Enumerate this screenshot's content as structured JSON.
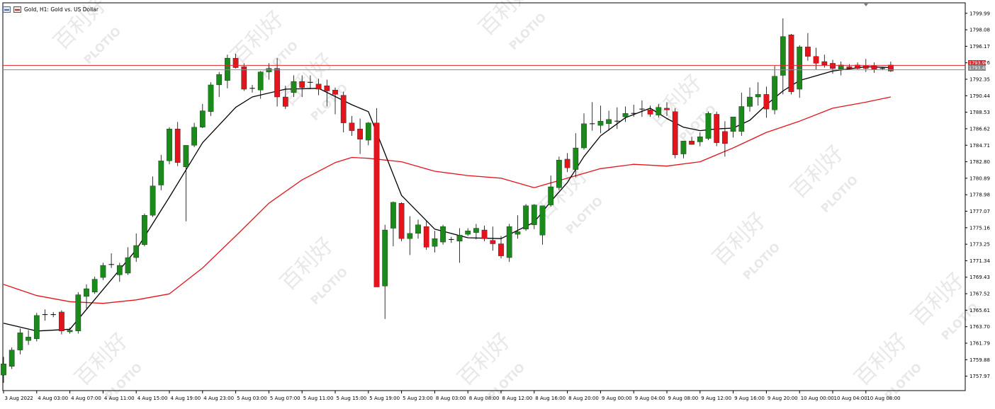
{
  "window": {
    "title": "Gold, H1:  Gold vs. US Dollar"
  },
  "price_labels": {
    "bid": "1793.96",
    "ask": "1793.45"
  },
  "colors": {
    "bullish": "#1a8a1a",
    "bearish": "#e3141b",
    "ma_fast": "#000000",
    "ma_slow": "#e3141b",
    "bid_line": "#e3262b",
    "ask_line": "#8c8c8c",
    "grid_axis": "#000000"
  },
  "watermark": {
    "cn": "百利好",
    "en": "PLOTIO"
  },
  "chart_data": {
    "type": "candlestick",
    "symbol": "Gold",
    "timeframe": "H1",
    "ylim": [
      1756.3,
      1801.2
    ],
    "y_ticks": [
      "1799.99",
      "1798.08",
      "1796.17",
      "1794.26",
      "1792.35",
      "1790.44",
      "1788.53",
      "1786.62",
      "1784.71",
      "1782.80",
      "1780.89",
      "1778.98",
      "1777.07",
      "1775.16",
      "1773.25",
      "1771.34",
      "1769.43",
      "1767.52",
      "1765.61",
      "1763.70",
      "1761.79",
      "1759.88",
      "1757.97"
    ],
    "x_ticks": [
      "3 Aug 2022",
      "4 Aug 03:00",
      "4 Aug 07:00",
      "4 Aug 11:00",
      "4 Aug 15:00",
      "4 Aug 19:00",
      "4 Aug 23:00",
      "5 Aug 03:00",
      "5 Aug 07:00",
      "5 Aug 11:00",
      "5 Aug 15:00",
      "5 Aug 19:00",
      "5 Aug 23:00",
      "8 Aug 03:00",
      "8 Aug 08:00",
      "8 Aug 12:00",
      "8 Aug 16:00",
      "8 Aug 20:00",
      "9 Aug 00:00",
      "9 Aug 04:00",
      "9 Aug 08:00",
      "9 Aug 12:00",
      "9 Aug 16:00",
      "9 Aug 20:00",
      "10 Aug 00:00",
      "10 Aug 04:00",
      "10 Aug 08:00"
    ],
    "x_tick_index": [
      0,
      4,
      8,
      12,
      16,
      20,
      24,
      28,
      32,
      36,
      40,
      44,
      48,
      52,
      56,
      60,
      64,
      68,
      72,
      76,
      80,
      84,
      88,
      92,
      96,
      100,
      104
    ],
    "bid": 1793.96,
    "ask": 1793.45,
    "candles": [
      [
        1758.1,
        1760.2,
        1757.2,
        1759.4
      ],
      [
        1759.1,
        1761.3,
        1758.8,
        1761.0
      ],
      [
        1761.0,
        1763.5,
        1760.5,
        1763.0
      ],
      [
        1762.1,
        1763.3,
        1761.6,
        1762.5
      ],
      [
        1762.3,
        1765.3,
        1762.0,
        1765.0
      ],
      [
        1765.0,
        1765.7,
        1764.4,
        1765.1
      ],
      [
        1765.1,
        1765.4,
        1764.8,
        1765.1
      ],
      [
        1765.4,
        1765.6,
        1762.8,
        1763.2
      ],
      [
        1763.1,
        1763.6,
        1762.9,
        1763.3
      ],
      [
        1763.2,
        1767.7,
        1762.9,
        1767.4
      ],
      [
        1767.2,
        1768.6,
        1765.8,
        1768.1
      ],
      [
        1767.7,
        1769.5,
        1767.5,
        1769.2
      ],
      [
        1769.4,
        1771.1,
        1769.1,
        1770.8
      ],
      [
        1770.8,
        1772.2,
        1770.5,
        1770.9
      ],
      [
        1769.7,
        1771.1,
        1768.9,
        1770.8
      ],
      [
        1769.9,
        1772.9,
        1769.7,
        1771.7
      ],
      [
        1771.7,
        1774.5,
        1771.2,
        1773.1
      ],
      [
        1773.2,
        1776.8,
        1773.0,
        1776.6
      ],
      [
        1776.6,
        1781.1,
        1776.4,
        1780.0
      ],
      [
        1780.1,
        1783.6,
        1779.5,
        1782.9
      ],
      [
        1782.9,
        1786.8,
        1782.5,
        1786.6
      ],
      [
        1786.6,
        1787.4,
        1782.3,
        1782.7
      ],
      [
        1782.2,
        1784.7,
        1775.9,
        1784.7
      ],
      [
        1784.7,
        1787.3,
        1784.5,
        1786.8
      ],
      [
        1786.8,
        1789.5,
        1786.7,
        1788.7
      ],
      [
        1788.6,
        1792.0,
        1788.1,
        1791.7
      ],
      [
        1791.7,
        1793.2,
        1790.3,
        1792.9
      ],
      [
        1792.2,
        1795.2,
        1791.3,
        1794.8
      ],
      [
        1794.8,
        1795.3,
        1793.6,
        1793.7
      ],
      [
        1793.8,
        1794.2,
        1791.0,
        1791.2
      ],
      [
        1791.3,
        1791.7,
        1790.8,
        1791.3
      ],
      [
        1791.1,
        1793.3,
        1790.1,
        1793.2
      ],
      [
        1793.2,
        1794.2,
        1792.3,
        1793.6
      ],
      [
        1793.6,
        1794.8,
        1789.2,
        1790.3
      ],
      [
        1790.3,
        1791.6,
        1788.9,
        1789.2
      ],
      [
        1790.8,
        1792.8,
        1790.3,
        1792.1
      ],
      [
        1792.1,
        1792.8,
        1790.3,
        1791.4
      ],
      [
        1791.9,
        1792.8,
        1791.2,
        1792.0
      ],
      [
        1791.8,
        1792.4,
        1790.5,
        1791.2
      ],
      [
        1791.6,
        1792.3,
        1789.2,
        1791.0
      ],
      [
        1791.1,
        1791.4,
        1788.3,
        1790.6
      ],
      [
        1790.5,
        1790.9,
        1786.2,
        1787.3
      ],
      [
        1787.3,
        1788.1,
        1785.8,
        1786.4
      ],
      [
        1786.6,
        1787.8,
        1783.7,
        1785.4
      ],
      [
        1785.3,
        1787.4,
        1784.7,
        1787.3
      ],
      [
        1787.3,
        1789.0,
        1768.4,
        1768.3
      ],
      [
        1768.4,
        1775.5,
        1764.6,
        1774.9
      ],
      [
        1775.1,
        1778.2,
        1773.0,
        1778.1
      ],
      [
        1778.0,
        1778.1,
        1773.6,
        1773.9
      ],
      [
        1773.9,
        1776.5,
        1772.0,
        1774.5
      ],
      [
        1774.5,
        1776.1,
        1773.9,
        1775.5
      ],
      [
        1775.3,
        1776.0,
        1772.6,
        1772.9
      ],
      [
        1773.0,
        1774.8,
        1772.3,
        1773.9
      ],
      [
        1773.5,
        1775.5,
        1773.2,
        1775.3
      ],
      [
        1773.7,
        1774.1,
        1773.4,
        1773.8
      ],
      [
        1773.6,
        1775.1,
        1771.1,
        1774.3
      ],
      [
        1774.4,
        1775.1,
        1774.2,
        1774.8
      ],
      [
        1774.6,
        1775.6,
        1773.8,
        1775.1
      ],
      [
        1774.9,
        1775.4,
        1773.6,
        1773.9
      ],
      [
        1773.7,
        1775.3,
        1772.5,
        1773.3
      ],
      [
        1773.3,
        1774.2,
        1771.6,
        1771.9
      ],
      [
        1771.7,
        1775.6,
        1771.2,
        1775.3
      ],
      [
        1774.4,
        1776.6,
        1773.9,
        1774.7
      ],
      [
        1775.0,
        1777.9,
        1774.8,
        1777.7
      ],
      [
        1775.5,
        1777.9,
        1775.0,
        1777.8
      ],
      [
        1774.3,
        1777.5,
        1773.2,
        1777.7
      ],
      [
        1777.8,
        1781.2,
        1777.6,
        1779.9
      ],
      [
        1779.8,
        1783.4,
        1779.5,
        1783.0
      ],
      [
        1783.1,
        1783.8,
        1781.6,
        1782.1
      ],
      [
        1781.9,
        1786.1,
        1781.0,
        1784.4
      ],
      [
        1784.4,
        1788.4,
        1784.2,
        1787.2
      ],
      [
        1787.2,
        1789.7,
        1786.4,
        1787.1
      ],
      [
        1787.0,
        1789.3,
        1786.1,
        1787.5
      ],
      [
        1787.2,
        1788.7,
        1786.4,
        1787.7
      ],
      [
        1787.4,
        1789.1,
        1786.6,
        1787.5
      ],
      [
        1788.0,
        1789.2,
        1787.4,
        1788.4
      ],
      [
        1788.4,
        1789.4,
        1788.0,
        1788.3
      ],
      [
        1788.9,
        1789.9,
        1788.0,
        1788.9
      ],
      [
        1788.8,
        1789.3,
        1788.0,
        1788.3
      ],
      [
        1788.2,
        1789.5,
        1787.9,
        1789.1
      ],
      [
        1789.0,
        1789.7,
        1788.1,
        1788.8
      ],
      [
        1788.6,
        1789.0,
        1783.2,
        1783.6
      ],
      [
        1783.7,
        1785.2,
        1783.2,
        1785.2
      ],
      [
        1785.2,
        1785.7,
        1784.8,
        1784.8
      ],
      [
        1785.1,
        1786.2,
        1784.6,
        1785.7
      ],
      [
        1785.5,
        1788.6,
        1785.3,
        1788.4
      ],
      [
        1788.3,
        1788.6,
        1784.6,
        1785.0
      ],
      [
        1786.3,
        1787.5,
        1783.4,
        1784.9
      ],
      [
        1786.3,
        1787.6,
        1785.6,
        1788.0
      ],
      [
        1786.3,
        1790.8,
        1785.8,
        1789.2
      ],
      [
        1789.2,
        1791.4,
        1788.6,
        1790.3
      ],
      [
        1790.3,
        1792.0,
        1789.3,
        1790.6
      ],
      [
        1790.6,
        1791.5,
        1787.9,
        1788.9
      ],
      [
        1788.8,
        1793.9,
        1788.3,
        1792.7
      ],
      [
        1792.8,
        1799.4,
        1790.6,
        1797.3
      ],
      [
        1797.5,
        1797.6,
        1790.6,
        1790.9
      ],
      [
        1791.2,
        1796.3,
        1790.2,
        1796.1
      ],
      [
        1796.1,
        1797.7,
        1794.5,
        1795.0
      ],
      [
        1795.0,
        1796.0,
        1793.5,
        1794.2
      ],
      [
        1794.4,
        1795.2,
        1793.7,
        1794.0
      ],
      [
        1794.2,
        1794.6,
        1793.0,
        1793.6
      ],
      [
        1793.5,
        1794.4,
        1792.8,
        1794.0
      ],
      [
        1793.8,
        1794.1,
        1793.5,
        1793.6
      ],
      [
        1794.0,
        1794.3,
        1793.5,
        1793.6
      ],
      [
        1793.9,
        1794.7,
        1793.2,
        1793.6
      ],
      [
        1793.9,
        1794.3,
        1793.1,
        1793.5
      ],
      [
        1793.5,
        1793.8,
        1793.4,
        1793.6
      ],
      [
        1794.0,
        1794.4,
        1793.2,
        1793.3
      ]
    ],
    "ma_fast": {
      "x": [
        0,
        4,
        8,
        12,
        16,
        20,
        24,
        28,
        30,
        34,
        38,
        42,
        44,
        48,
        52,
        56,
        60,
        64,
        66,
        68,
        70,
        72,
        75,
        78,
        80,
        82,
        84,
        86,
        88,
        90,
        92,
        94,
        96,
        100,
        104,
        107
      ],
      "y": [
        1764.1,
        1763.2,
        1763.4,
        1768.0,
        1772.6,
        1778.7,
        1785.0,
        1789.1,
        1790.3,
        1791.2,
        1791.3,
        1789.4,
        1788.6,
        1778.9,
        1775.0,
        1774.0,
        1773.9,
        1775.8,
        1778.2,
        1780.4,
        1783.4,
        1785.8,
        1787.9,
        1789.0,
        1787.8,
        1786.8,
        1786.4,
        1786.6,
        1786.7,
        1787.6,
        1789.4,
        1791.0,
        1792.2,
        1793.3,
        1793.8,
        1793.7
      ]
    },
    "ma_slow": {
      "x": [
        0,
        4,
        8,
        12,
        16,
        20,
        24,
        28,
        32,
        36,
        40,
        42,
        44,
        48,
        52,
        56,
        60,
        64,
        68,
        72,
        76,
        80,
        84,
        88,
        92,
        96,
        100,
        104,
        107
      ],
      "y": [
        1768.6,
        1767.3,
        1766.6,
        1766.4,
        1766.8,
        1767.5,
        1770.5,
        1774.2,
        1778.0,
        1780.7,
        1782.7,
        1783.3,
        1783.2,
        1782.8,
        1781.7,
        1781.2,
        1780.9,
        1779.8,
        1780.9,
        1782.0,
        1782.5,
        1782.3,
        1782.8,
        1784.4,
        1786.2,
        1787.5,
        1789.0,
        1789.7,
        1790.3
      ]
    }
  }
}
